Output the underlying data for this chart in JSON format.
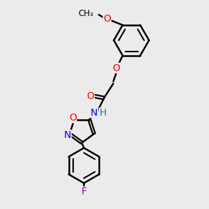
{
  "background_color": "#ebebeb",
  "bond_width": 1.8,
  "font_size": 10,
  "fig_size": [
    3.0,
    3.0
  ],
  "dpi": 100,
  "xlim": [
    0,
    10
  ],
  "ylim": [
    0,
    10
  ]
}
